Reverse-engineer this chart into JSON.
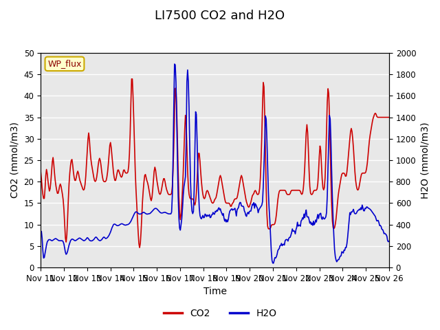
{
  "title": "LI7500 CO2 and H2O",
  "xlabel": "Time",
  "ylabel_left": "CO2 (mmol/m3)",
  "ylabel_right": "H2O (mmol/m3)",
  "ylim_left": [
    0,
    50
  ],
  "ylim_right": [
    0,
    2000
  ],
  "yticks_left": [
    0,
    5,
    10,
    15,
    20,
    25,
    30,
    35,
    40,
    45,
    50
  ],
  "yticks_right": [
    0,
    200,
    400,
    600,
    800,
    1000,
    1200,
    1400,
    1600,
    1800,
    2000
  ],
  "xtick_labels": [
    "Nov 11",
    "Nov 12",
    "Nov 13",
    "Nov 14",
    "Nov 15",
    "Nov 16",
    "Nov 17",
    "Nov 18",
    "Nov 19",
    "Nov 20",
    "Nov 21",
    "Nov 22",
    "Nov 23",
    "Nov 24",
    "Nov 25",
    "Nov 26"
  ],
  "co2_color": "#CC0000",
  "h2o_color": "#0000CC",
  "plot_bg_color": "#E8E8E8",
  "grid_color": "#FFFFFF",
  "legend_label_co2": "CO2",
  "legend_label_h2o": "H2O",
  "site_label": "WP_flux",
  "title_fontsize": 13,
  "axis_fontsize": 10,
  "tick_fontsize": 8.5,
  "line_width": 1.2
}
